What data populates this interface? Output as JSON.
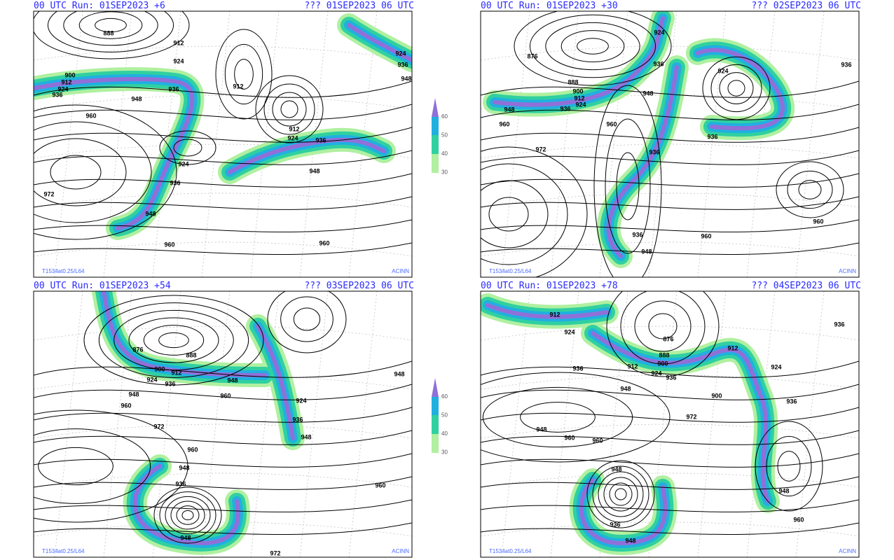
{
  "panels": [
    {
      "header_left": "00 UTC Run: 01SEP2023 +6",
      "header_right": "??? 01SEP2023 06 UTC",
      "contour_labels": [
        "888",
        "912",
        "924",
        "900",
        "912",
        "924",
        "936",
        "936",
        "948",
        "960",
        "912",
        "912",
        "924",
        "936",
        "948",
        "924",
        "936",
        "948",
        "972",
        "960",
        "960",
        "924",
        "936",
        "948"
      ],
      "footer_left": "T1534at0.25/L64",
      "footer_right": "ACINN"
    },
    {
      "header_left": "00 UTC Run: 01SEP2023 +30",
      "header_right": "??? 02SEP2023 06 UTC",
      "contour_labels": [
        "876",
        "888",
        "900",
        "912",
        "924",
        "936",
        "948",
        "960",
        "924",
        "936",
        "948",
        "960",
        "972",
        "924",
        "936",
        "936",
        "936",
        "948",
        "960",
        "960",
        "936"
      ],
      "footer_left": "T1534at0.25/L64",
      "footer_right": "ACINN"
    },
    {
      "header_left": "00 UTC Run: 01SEP2023 +54",
      "header_right": "??? 03SEP2023 06 UTC",
      "contour_labels": [
        "876",
        "888",
        "900",
        "912",
        "924",
        "936",
        "948",
        "948",
        "960",
        "960",
        "972",
        "924",
        "936",
        "948",
        "960",
        "948",
        "936",
        "948",
        "972",
        "960",
        "948"
      ],
      "footer_left": "T1534at0.25/L64",
      "footer_right": "ACINN"
    },
    {
      "header_left": "00 UTC Run: 01SEP2023 +78",
      "header_right": "??? 04SEP2023 06 UTC",
      "contour_labels": [
        "912",
        "924",
        "936",
        "948",
        "960",
        "960",
        "876",
        "888",
        "900",
        "912",
        "924",
        "948",
        "936",
        "912",
        "924",
        "900",
        "972",
        "936",
        "948",
        "960",
        "936",
        "948",
        "936",
        "948"
      ],
      "footer_left": "T1534at0.25/L64",
      "footer_right": "ACINN"
    }
  ],
  "colorbars": [
    {
      "labels": [
        "60",
        "50",
        "40",
        "30"
      ]
    },
    {
      "labels": [
        "60",
        "50",
        "40",
        "30"
      ]
    }
  ]
}
